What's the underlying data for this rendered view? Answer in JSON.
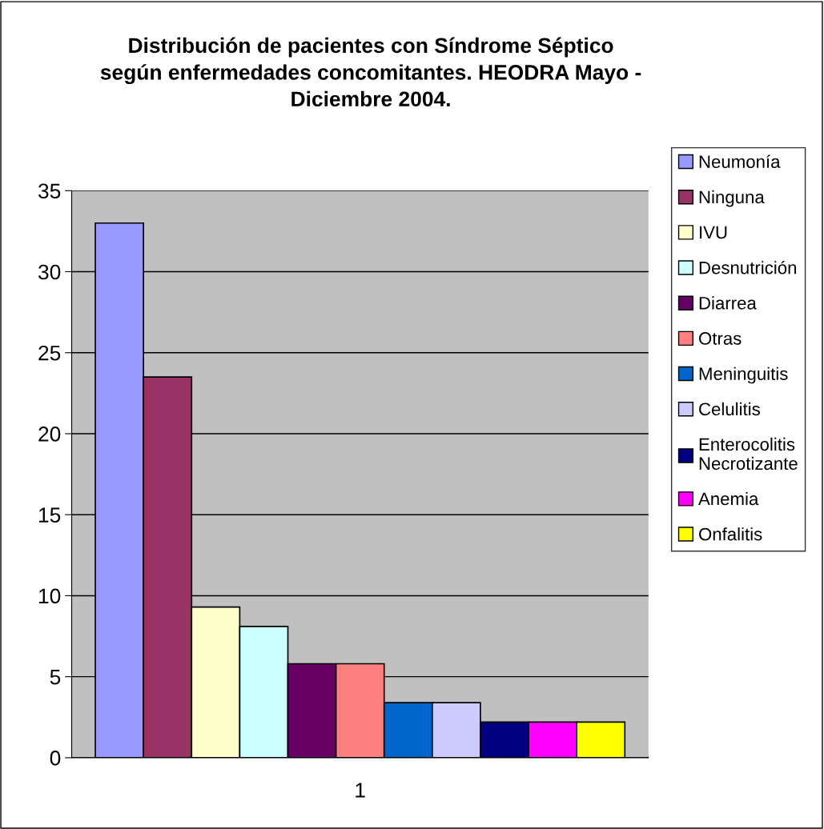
{
  "chart_data": {
    "type": "bar",
    "title": "Distribución de pacientes con Síndrome Séptico\nsegún enfermedades concomitantes. HEODRA Mayo -\nDiciembre 2004.",
    "categories": [
      "1"
    ],
    "ylim": [
      0,
      35
    ],
    "yticks": [
      0,
      5,
      10,
      15,
      20,
      25,
      30,
      35
    ],
    "grid": "y",
    "legend": "right",
    "series": [
      {
        "name": "Neumonía",
        "color": "#9999ff",
        "values": [
          33.0
        ]
      },
      {
        "name": "Ninguna",
        "color": "#993366",
        "values": [
          23.5
        ]
      },
      {
        "name": "IVU",
        "color": "#ffffcc",
        "values": [
          9.3
        ]
      },
      {
        "name": "Desnutrición",
        "color": "#ccffff",
        "values": [
          8.1
        ]
      },
      {
        "name": "Diarrea",
        "color": "#660066",
        "values": [
          5.8
        ]
      },
      {
        "name": "Otras",
        "color": "#ff8080",
        "values": [
          5.8
        ]
      },
      {
        "name": "Meninguitis",
        "color": "#0066cc",
        "values": [
          3.4
        ]
      },
      {
        "name": "Celulitis",
        "color": "#ccccff",
        "values": [
          3.4
        ]
      },
      {
        "name": "Enterocolitis\nNecrotizante",
        "color": "#000080",
        "values": [
          2.2
        ]
      },
      {
        "name": "Anemia",
        "color": "#ff00ff",
        "values": [
          2.2
        ]
      },
      {
        "name": "Onfalitis",
        "color": "#ffff00",
        "values": [
          2.2
        ]
      }
    ]
  }
}
